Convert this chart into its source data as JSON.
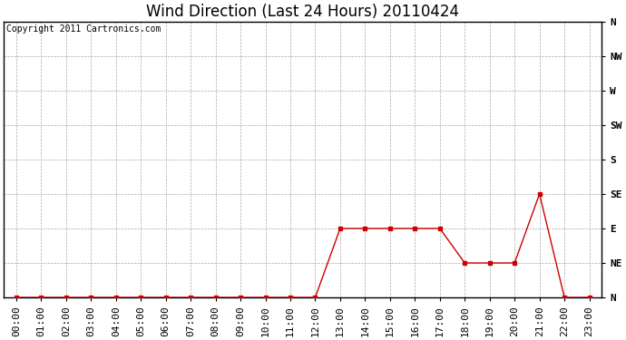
{
  "title": "Wind Direction (Last 24 Hours) 20110424",
  "copyright_text": "Copyright 2011 Cartronics.com",
  "x_labels": [
    "00:00",
    "01:00",
    "02:00",
    "03:00",
    "04:00",
    "05:00",
    "06:00",
    "07:00",
    "08:00",
    "09:00",
    "10:00",
    "11:00",
    "12:00",
    "13:00",
    "14:00",
    "15:00",
    "16:00",
    "17:00",
    "18:00",
    "19:00",
    "20:00",
    "21:00",
    "22:00",
    "23:00"
  ],
  "y_values": [
    0,
    0,
    0,
    0,
    0,
    0,
    0,
    0,
    0,
    0,
    0,
    0,
    0,
    90,
    90,
    90,
    90,
    90,
    45,
    45,
    45,
    135,
    0,
    0
  ],
  "y_ticks": [
    0,
    45,
    90,
    135,
    180,
    225,
    270,
    315,
    360
  ],
  "y_tick_labels": [
    "N",
    "NE",
    "E",
    "SE",
    "S",
    "SW",
    "W",
    "NW",
    "N"
  ],
  "y_min": 0,
  "y_max": 360,
  "line_color": "#cc0000",
  "marker": "s",
  "marker_size": 3,
  "background_color": "#ffffff",
  "grid_color": "#aaaaaa",
  "grid_style": "--",
  "grid_linewidth": 0.5,
  "title_fontsize": 12,
  "axis_fontsize": 8,
  "copyright_fontsize": 7,
  "figure_width": 6.9,
  "figure_height": 3.75,
  "dpi": 100
}
